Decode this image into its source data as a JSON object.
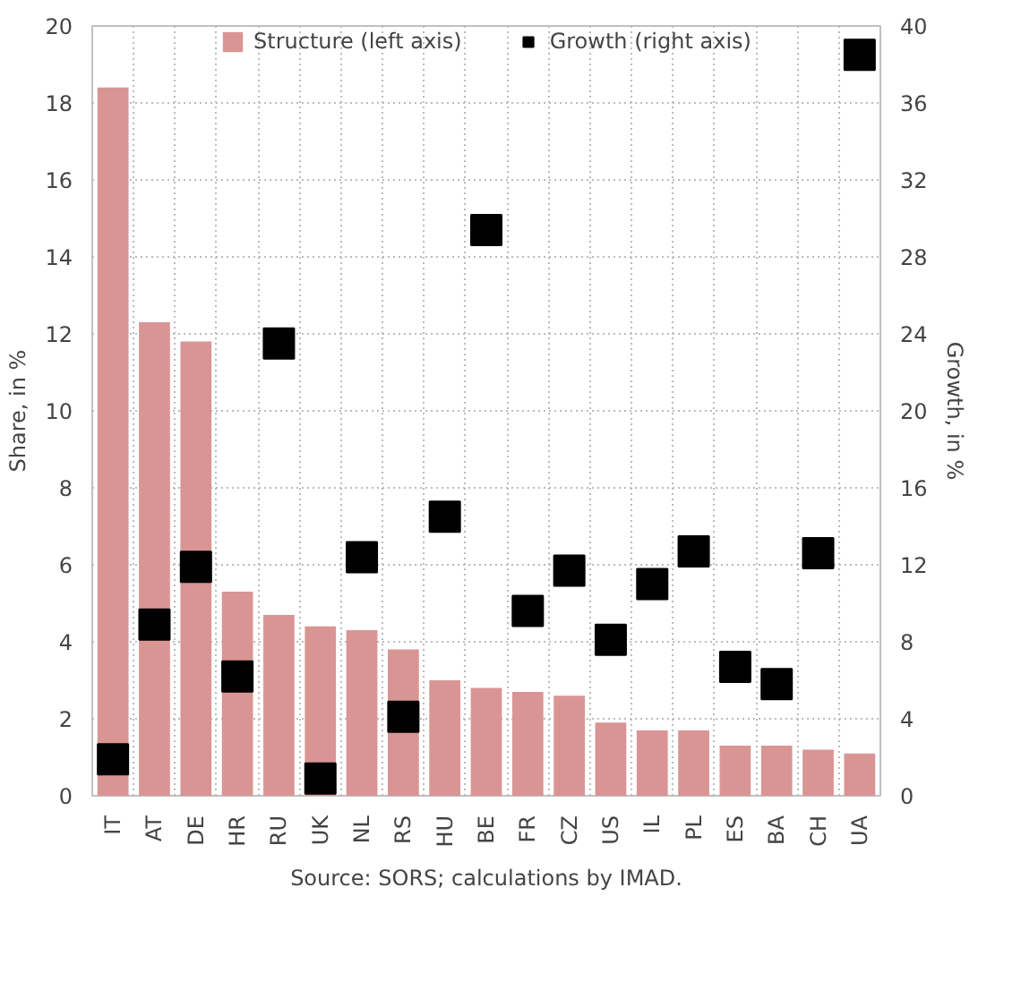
{
  "chart_data": {
    "type": "bar",
    "ylabel": "Share, in %",
    "y2label": "Growth, in %",
    "categories": [
      "IT",
      "AT",
      "DE",
      "HR",
      "RU",
      "UK",
      "NL",
      "RS",
      "HU",
      "BE",
      "FR",
      "CZ",
      "US",
      "IL",
      "PL",
      "ES",
      "BA",
      "CH",
      "UA"
    ],
    "series": [
      {
        "name": "Structure (left axis)",
        "color": "#d99594",
        "values": [
          18.4,
          12.3,
          11.8,
          5.3,
          4.7,
          4.4,
          4.3,
          3.8,
          3.0,
          2.8,
          2.7,
          2.6,
          1.9,
          1.7,
          1.7,
          1.3,
          1.3,
          1.2,
          1.1
        ]
      },
      {
        "name": "Growth (right axis)",
        "type": "scatter",
        "axis": "y2",
        "marker": "square",
        "color": "#000000",
        "values": [
          1.9,
          8.9,
          11.9,
          6.2,
          23.5,
          0.9,
          12.4,
          4.1,
          14.5,
          29.4,
          9.6,
          11.7,
          8.1,
          11.0,
          12.7,
          6.7,
          5.8,
          12.6,
          38.5
        ]
      }
    ],
    "ylim": [
      0,
      20
    ],
    "yticks": [
      0,
      2,
      4,
      6,
      8,
      10,
      12,
      14,
      16,
      18,
      20
    ],
    "y2lim": [
      0,
      40
    ],
    "y2ticks": [
      0,
      4,
      8,
      12,
      16,
      20,
      24,
      28,
      32,
      36,
      40
    ],
    "grid": true,
    "legend": "top",
    "annotations": [
      "Source: SORS; calculations by IMAD."
    ]
  }
}
